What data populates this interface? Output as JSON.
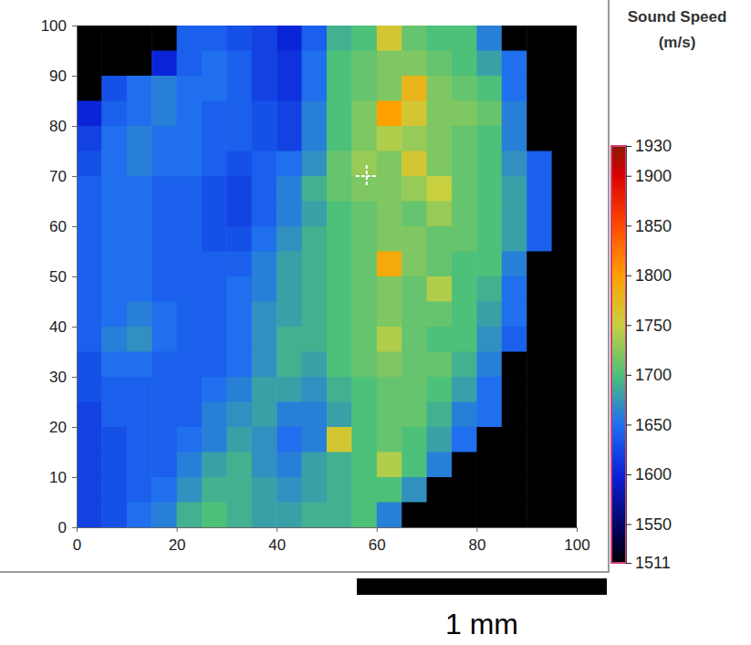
{
  "chart_data": {
    "type": "heatmap",
    "x": [
      2.5,
      7.5,
      12.5,
      17.5,
      22.5,
      27.5,
      32.5,
      37.5,
      42.5,
      47.5,
      52.5,
      57.5,
      62.5,
      67.5,
      72.5,
      77.5,
      82.5,
      87.5,
      92.5,
      97.5
    ],
    "y": [
      97.5,
      92.5,
      87.5,
      82.5,
      77.5,
      72.5,
      67.5,
      62.5,
      57.5,
      52.5,
      47.5,
      42.5,
      37.5,
      32.5,
      27.5,
      22.5,
      17.5,
      12.5,
      7.5,
      2.5
    ],
    "cells": [
      [
        1511,
        1511,
        1511,
        1511,
        1640,
        1640,
        1630,
        1620,
        1600,
        1640,
        1690,
        1700,
        1760,
        1710,
        1700,
        1700,
        1660,
        1511,
        1511,
        1511
      ],
      [
        1511,
        1511,
        1511,
        1600,
        1640,
        1650,
        1640,
        1620,
        1610,
        1650,
        1700,
        1710,
        1720,
        1720,
        1710,
        1700,
        1680,
        1650,
        1511,
        1511
      ],
      [
        1511,
        1630,
        1650,
        1660,
        1650,
        1650,
        1640,
        1620,
        1610,
        1650,
        1700,
        1710,
        1720,
        1780,
        1720,
        1710,
        1700,
        1650,
        1511,
        1511
      ],
      [
        1600,
        1640,
        1650,
        1660,
        1650,
        1640,
        1640,
        1630,
        1620,
        1660,
        1700,
        1720,
        1800,
        1760,
        1720,
        1720,
        1710,
        1660,
        1511,
        1511
      ],
      [
        1620,
        1650,
        1660,
        1650,
        1650,
        1640,
        1640,
        1630,
        1620,
        1660,
        1700,
        1720,
        1740,
        1730,
        1720,
        1710,
        1700,
        1660,
        1511,
        1511
      ],
      [
        1630,
        1650,
        1660,
        1650,
        1650,
        1640,
        1630,
        1640,
        1650,
        1670,
        1710,
        1730,
        1720,
        1760,
        1720,
        1710,
        1700,
        1670,
        1640,
        1511
      ],
      [
        1640,
        1650,
        1650,
        1640,
        1640,
        1630,
        1620,
        1640,
        1660,
        1690,
        1710,
        1720,
        1720,
        1730,
        1750,
        1710,
        1700,
        1680,
        1640,
        1511
      ],
      [
        1640,
        1650,
        1650,
        1640,
        1640,
        1630,
        1620,
        1640,
        1660,
        1680,
        1700,
        1710,
        1720,
        1710,
        1730,
        1710,
        1700,
        1680,
        1640,
        1511
      ],
      [
        1640,
        1650,
        1650,
        1640,
        1640,
        1630,
        1630,
        1650,
        1670,
        1690,
        1700,
        1710,
        1720,
        1720,
        1710,
        1710,
        1700,
        1680,
        1640,
        1511
      ],
      [
        1640,
        1650,
        1650,
        1640,
        1640,
        1640,
        1640,
        1660,
        1680,
        1690,
        1700,
        1710,
        1790,
        1720,
        1710,
        1700,
        1700,
        1660,
        1511,
        1511
      ],
      [
        1640,
        1650,
        1650,
        1640,
        1640,
        1640,
        1650,
        1660,
        1680,
        1690,
        1700,
        1710,
        1720,
        1710,
        1740,
        1700,
        1690,
        1650,
        1511,
        1511
      ],
      [
        1640,
        1650,
        1660,
        1650,
        1640,
        1640,
        1650,
        1670,
        1680,
        1690,
        1700,
        1710,
        1720,
        1710,
        1710,
        1700,
        1680,
        1650,
        1511,
        1511
      ],
      [
        1640,
        1660,
        1670,
        1650,
        1640,
        1640,
        1650,
        1670,
        1690,
        1690,
        1700,
        1710,
        1740,
        1710,
        1700,
        1700,
        1670,
        1640,
        1511,
        1511
      ],
      [
        1630,
        1650,
        1650,
        1640,
        1640,
        1640,
        1650,
        1670,
        1690,
        1680,
        1700,
        1710,
        1720,
        1710,
        1710,
        1690,
        1660,
        1511,
        1511,
        1511
      ],
      [
        1630,
        1640,
        1640,
        1640,
        1640,
        1650,
        1660,
        1680,
        1680,
        1670,
        1690,
        1700,
        1710,
        1710,
        1700,
        1680,
        1650,
        1511,
        1511,
        1511
      ],
      [
        1620,
        1640,
        1640,
        1640,
        1640,
        1660,
        1670,
        1680,
        1660,
        1660,
        1680,
        1700,
        1710,
        1710,
        1690,
        1660,
        1650,
        1511,
        1511,
        1511
      ],
      [
        1620,
        1630,
        1640,
        1640,
        1650,
        1660,
        1680,
        1670,
        1650,
        1660,
        1760,
        1700,
        1710,
        1700,
        1680,
        1650,
        1511,
        1511,
        1511,
        1511
      ],
      [
        1620,
        1630,
        1640,
        1640,
        1660,
        1680,
        1690,
        1670,
        1660,
        1680,
        1690,
        1700,
        1740,
        1700,
        1660,
        1511,
        1511,
        1511,
        1511,
        1511
      ],
      [
        1620,
        1630,
        1640,
        1650,
        1670,
        1690,
        1690,
        1680,
        1670,
        1680,
        1690,
        1700,
        1700,
        1670,
        1511,
        1511,
        1511,
        1511,
        1511,
        1511
      ],
      [
        1620,
        1630,
        1650,
        1660,
        1690,
        1700,
        1690,
        1680,
        1680,
        1690,
        1690,
        1700,
        1660,
        1511,
        1511,
        1511,
        1511,
        1511,
        1511,
        1511
      ]
    ],
    "xlim": [
      0,
      100
    ],
    "ylim": [
      0,
      100
    ],
    "xticks": [
      0,
      20,
      40,
      60,
      80,
      100
    ],
    "yticks": [
      0,
      10,
      20,
      30,
      40,
      50,
      60,
      70,
      80,
      90,
      100
    ],
    "colorbar": {
      "title": [
        "Sound Speed",
        "(m/s)"
      ],
      "range": [
        1511,
        1930
      ],
      "ticks": [
        1511,
        1550,
        1600,
        1650,
        1700,
        1750,
        1800,
        1850,
        1900,
        1930
      ]
    },
    "cursor": {
      "x": 58,
      "y": 70
    },
    "scale_bar": {
      "length": 50,
      "label": "1 mm"
    }
  }
}
